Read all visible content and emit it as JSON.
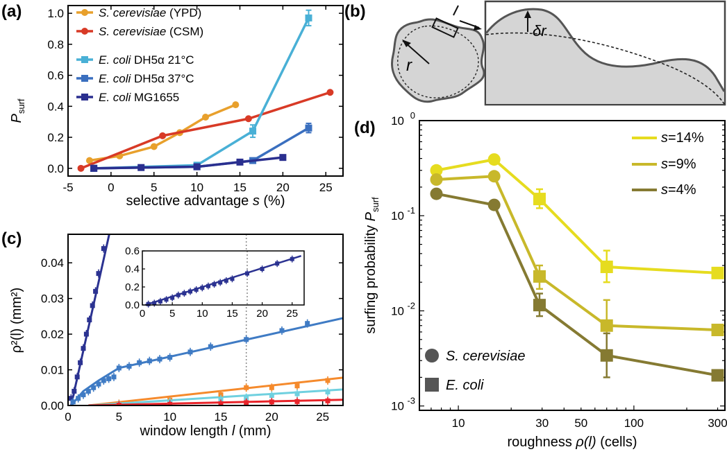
{
  "panels": {
    "a": "(a)",
    "b": "(b)",
    "c": "(c)",
    "d": "(d)"
  },
  "panel_b": {
    "r_label": "r",
    "l_label": "l",
    "dr_label": "δr"
  },
  "colors": {
    "yeast_ypd": "#e8a02c",
    "yeast_csm": "#d83a26",
    "dh5a21": "#49b0d6",
    "dh5a37": "#3a6fbf",
    "mg1655": "#2a2f8f",
    "c_navy": "#2b3291",
    "c_blue": "#3f7bc4",
    "c_orange": "#f58a2c",
    "c_cyan": "#6fd0df",
    "c_red": "#e8242a",
    "s14": "#e6dc1f",
    "s9": "#c8b82a",
    "s4": "#857a32"
  },
  "chart_data": [
    {
      "id": "a",
      "type": "line",
      "xlabel_pre": "selective advantage ",
      "xlabel_var": "s",
      "xlabel_post": " (%)",
      "ylabel_main": "P",
      "ylabel_sub": "surf",
      "xlim": [
        -5,
        27
      ],
      "ylim": [
        -0.05,
        1.05
      ],
      "xticks": [
        "-5",
        "0",
        "5",
        "10",
        "15",
        "20",
        "25"
      ],
      "yticks": [
        "0.0",
        "0.2",
        "0.4",
        "0.6",
        "0.8",
        "1.0"
      ],
      "series": [
        {
          "legend_italic": "S. cerevisiae",
          "legend_rest": " (YPD)",
          "color": "yeast_ypd",
          "marker": "circle",
          "x": [
            -2.5,
            1,
            5,
            8,
            11,
            14.5
          ],
          "y": [
            0.05,
            0.08,
            0.14,
            0.23,
            0.33,
            0.41
          ]
        },
        {
          "legend_italic": "S. cerevisiae",
          "legend_rest": " (CSM)",
          "color": "yeast_csm",
          "marker": "circle",
          "x": [
            -3.5,
            6,
            16,
            25.5
          ],
          "y": [
            0.0,
            0.21,
            0.32,
            0.49
          ]
        },
        {
          "legend_italic": "E. coli",
          "legend_rest": " DH5α 21°C",
          "color": "dh5a21",
          "marker": "square",
          "x": [
            -2,
            10,
            16.5,
            23
          ],
          "y": [
            0.0,
            0.02,
            0.24,
            0.97
          ],
          "err": [
            0.01,
            0.01,
            0.04,
            0.05
          ]
        },
        {
          "legend_italic": "E. coli",
          "legend_rest": " DH5α 37°C",
          "color": "dh5a37",
          "marker": "square",
          "x": [
            -2,
            10,
            16.5,
            23
          ],
          "y": [
            0.0,
            0.01,
            0.05,
            0.26
          ],
          "err": [
            0.01,
            0.01,
            0.01,
            0.03
          ]
        },
        {
          "legend_italic": "E. coli",
          "legend_rest": " MG1655",
          "color": "mg1655",
          "marker": "square",
          "x": [
            -2,
            3.5,
            10,
            15,
            20
          ],
          "y": [
            0.0,
            0.005,
            0.01,
            0.04,
            0.07
          ],
          "err": [
            0.01,
            0.01,
            0.01,
            0.01,
            0.01
          ]
        }
      ]
    },
    {
      "id": "c",
      "type": "scatter",
      "xlabel_pre": "window length ",
      "xlabel_var": "l",
      "xlabel_post": " (mm)",
      "ylabel": "ρ²(l) (mm²)",
      "xlim": [
        0,
        27
      ],
      "ylim": [
        0,
        0.048
      ],
      "xticks": [
        "0",
        "5",
        "10",
        "15",
        "20",
        "25"
      ],
      "yticks": [
        "0.00",
        "0.01",
        "0.02",
        "0.03",
        "0.04"
      ],
      "vline_x": 17.5,
      "series": [
        {
          "color": "c_navy",
          "x": [
            0.3,
            0.6,
            0.9,
            1.2,
            1.5,
            1.8,
            2.1,
            2.4,
            2.7,
            3.0,
            3.5
          ],
          "y": [
            0.002,
            0.004,
            0.008,
            0.012,
            0.016,
            0.02,
            0.024,
            0.028,
            0.032,
            0.037,
            0.044
          ]
        },
        {
          "color": "c_blue",
          "x": [
            0.5,
            1,
            1.5,
            2,
            2.5,
            3,
            3.5,
            4,
            4.5,
            5,
            6,
            7,
            8,
            9,
            10,
            12,
            14,
            17.5,
            21,
            23.5
          ],
          "y": [
            0.001,
            0.002,
            0.003,
            0.004,
            0.005,
            0.006,
            0.007,
            0.0075,
            0.008,
            0.0105,
            0.011,
            0.012,
            0.0125,
            0.013,
            0.0135,
            0.015,
            0.0165,
            0.0185,
            0.021,
            0.023
          ]
        },
        {
          "color": "c_orange",
          "x": [
            5,
            10,
            15,
            17.5,
            20,
            22.5,
            25.5
          ],
          "y": [
            0.0005,
            0.0015,
            0.003,
            0.005,
            0.005,
            0.0055,
            0.007
          ]
        },
        {
          "color": "c_cyan",
          "x": [
            5,
            10,
            15,
            17.5,
            20,
            22.5,
            25.5
          ],
          "y": [
            0.0003,
            0.001,
            0.0018,
            0.0022,
            0.0028,
            0.0033,
            0.0038
          ]
        },
        {
          "color": "c_red",
          "x": [
            5,
            10,
            15,
            17.5,
            20,
            22.5,
            25.5
          ],
          "y": [
            0.0001,
            0.0003,
            0.0005,
            0.0008,
            0.001,
            0.0011,
            0.0013
          ]
        }
      ],
      "fits": [
        {
          "color": "c_navy",
          "x": [
            0.3,
            4.2
          ],
          "y": [
            0.0,
            0.05
          ]
        },
        {
          "color": "c_blue",
          "x": [
            0.3,
            1.5,
            3.0,
            5.0,
            27.0
          ],
          "y": [
            0.0,
            0.004,
            0.007,
            0.0105,
            0.0245
          ]
        },
        {
          "color": "c_orange",
          "x": [
            2.0,
            27.0
          ],
          "y": [
            0.0,
            0.0078
          ]
        },
        {
          "color": "c_cyan",
          "x": [
            2.0,
            27.0
          ],
          "y": [
            0.0,
            0.0045
          ]
        },
        {
          "color": "c_red",
          "x": [
            2.0,
            27.0
          ],
          "y": [
            0.0,
            0.0016
          ]
        }
      ],
      "inset": {
        "xlim": [
          0,
          27
        ],
        "ylim": [
          0,
          0.6
        ],
        "xticks": [
          "0",
          "5",
          "10",
          "15",
          "20",
          "25"
        ],
        "yticks": [
          "0.0",
          "0.2",
          "0.4",
          "0.6"
        ],
        "vline_x": 17.5,
        "color": "c_navy",
        "x": [
          1,
          2,
          3,
          4,
          5,
          6,
          7,
          8,
          9,
          10,
          11,
          12,
          13,
          14,
          15,
          17.5,
          20,
          22.5,
          25
        ],
        "y": [
          0.01,
          0.02,
          0.04,
          0.06,
          0.08,
          0.11,
          0.13,
          0.15,
          0.17,
          0.19,
          0.21,
          0.23,
          0.25,
          0.27,
          0.29,
          0.35,
          0.4,
          0.46,
          0.51
        ]
      }
    },
    {
      "id": "d",
      "type": "line",
      "log_x": true,
      "log_y": true,
      "xlabel_pre": "roughness ",
      "xlabel_var": "ρ(l)",
      "xlabel_post": " (cells)",
      "ylabel_pre": "surfing probability ",
      "ylabel_var": "P",
      "ylabel_sub": "surf",
      "xlim": [
        6,
        330
      ],
      "ylim": [
        0.0009,
        1.0
      ],
      "xticks": [
        {
          "v": 10,
          "t": "10"
        },
        {
          "v": 30,
          "t": "30"
        },
        {
          "v": 50,
          "t": "50"
        },
        {
          "v": 100,
          "t": "100"
        },
        {
          "v": 300,
          "t": "300"
        }
      ],
      "yticks": [
        {
          "v": 1,
          "b": "10",
          "e": "0"
        },
        {
          "v": 0.1,
          "b": "10",
          "e": "-1"
        },
        {
          "v": 0.01,
          "b": "10",
          "e": "-2"
        },
        {
          "v": 0.001,
          "b": "10",
          "e": "-3"
        }
      ],
      "markers": [
        "circle",
        "circle",
        "square",
        "square",
        "square"
      ],
      "x": [
        7.5,
        16,
        29,
        70,
        300
      ],
      "series": [
        {
          "name_var": "s",
          "name_rest": "=14%",
          "color": "s14",
          "y": [
            0.3,
            0.39,
            0.15,
            0.029,
            0.025
          ],
          "err_lo": [
            0,
            0,
            0.12,
            0.02,
            0
          ],
          "err_hi": [
            0,
            0,
            0.19,
            0.043,
            0
          ]
        },
        {
          "name_var": "s",
          "name_rest": "=9%",
          "color": "s9",
          "y": [
            0.24,
            0.26,
            0.023,
            0.007,
            0.0063
          ],
          "err_lo": [
            0,
            0,
            0.017,
            0.003,
            0
          ],
          "err_hi": [
            0,
            0,
            0.03,
            0.013,
            0
          ]
        },
        {
          "name_var": "s",
          "name_rest": "=4%",
          "color": "s4",
          "y": [
            0.17,
            0.13,
            0.0115,
            0.0034,
            0.0021
          ],
          "err_lo": [
            0,
            0,
            0.0088,
            0.002,
            0
          ],
          "err_hi": [
            0,
            0,
            0.0152,
            0.0058,
            0
          ]
        }
      ],
      "marker_legend": [
        {
          "shape": "circle",
          "label": "S. cerevisiae"
        },
        {
          "shape": "square",
          "label": "E. coli"
        }
      ]
    }
  ]
}
